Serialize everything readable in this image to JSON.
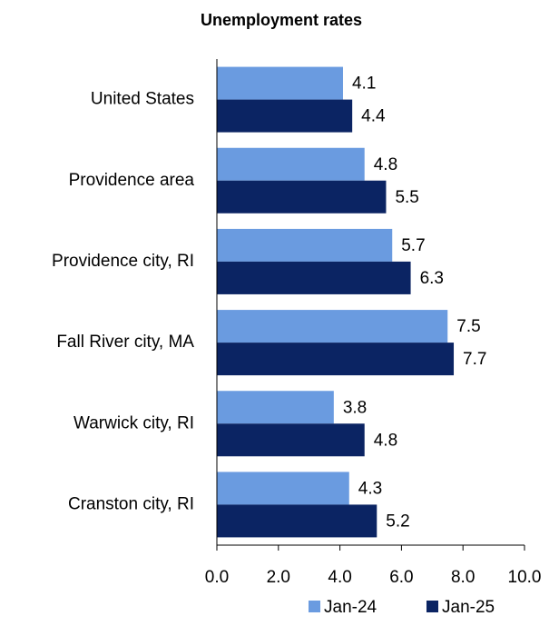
{
  "chart_data": {
    "type": "hbar",
    "title": "Unemployment rates",
    "categories": [
      "United States",
      "Providence area",
      "Providence city, RI",
      "Fall River city, MA",
      "Warwick city, RI",
      "Cranston city, RI"
    ],
    "series": [
      {
        "name": "Jan-24",
        "color": "#6a9be0",
        "values": [
          4.1,
          4.8,
          5.7,
          7.5,
          3.8,
          4.3
        ]
      },
      {
        "name": "Jan-25",
        "color": "#0b2463",
        "values": [
          4.4,
          5.5,
          6.3,
          7.7,
          4.8,
          5.2
        ]
      }
    ],
    "xlim": [
      0,
      10
    ],
    "xticks": [
      {
        "value": 0,
        "label": "0.0"
      },
      {
        "value": 2,
        "label": "2.0"
      },
      {
        "value": 4,
        "label": "4.0"
      },
      {
        "value": 6,
        "label": "6.0"
      },
      {
        "value": 8,
        "label": "8.0"
      },
      {
        "value": 10,
        "label": "10.0"
      }
    ],
    "legend": "bottom"
  }
}
